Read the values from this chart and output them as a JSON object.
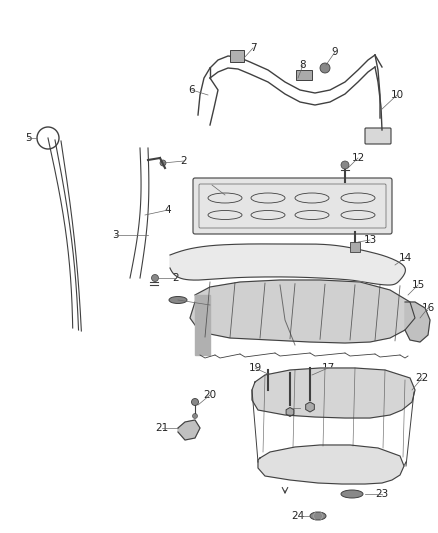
{
  "bg_color": "#ffffff",
  "line_color": "#404040",
  "label_color": "#222222",
  "fig_width": 4.38,
  "fig_height": 5.33,
  "dpi": 100,
  "label_fontsize": 7.5,
  "parts_color": "#d8d8d8",
  "dark_color": "#888888"
}
